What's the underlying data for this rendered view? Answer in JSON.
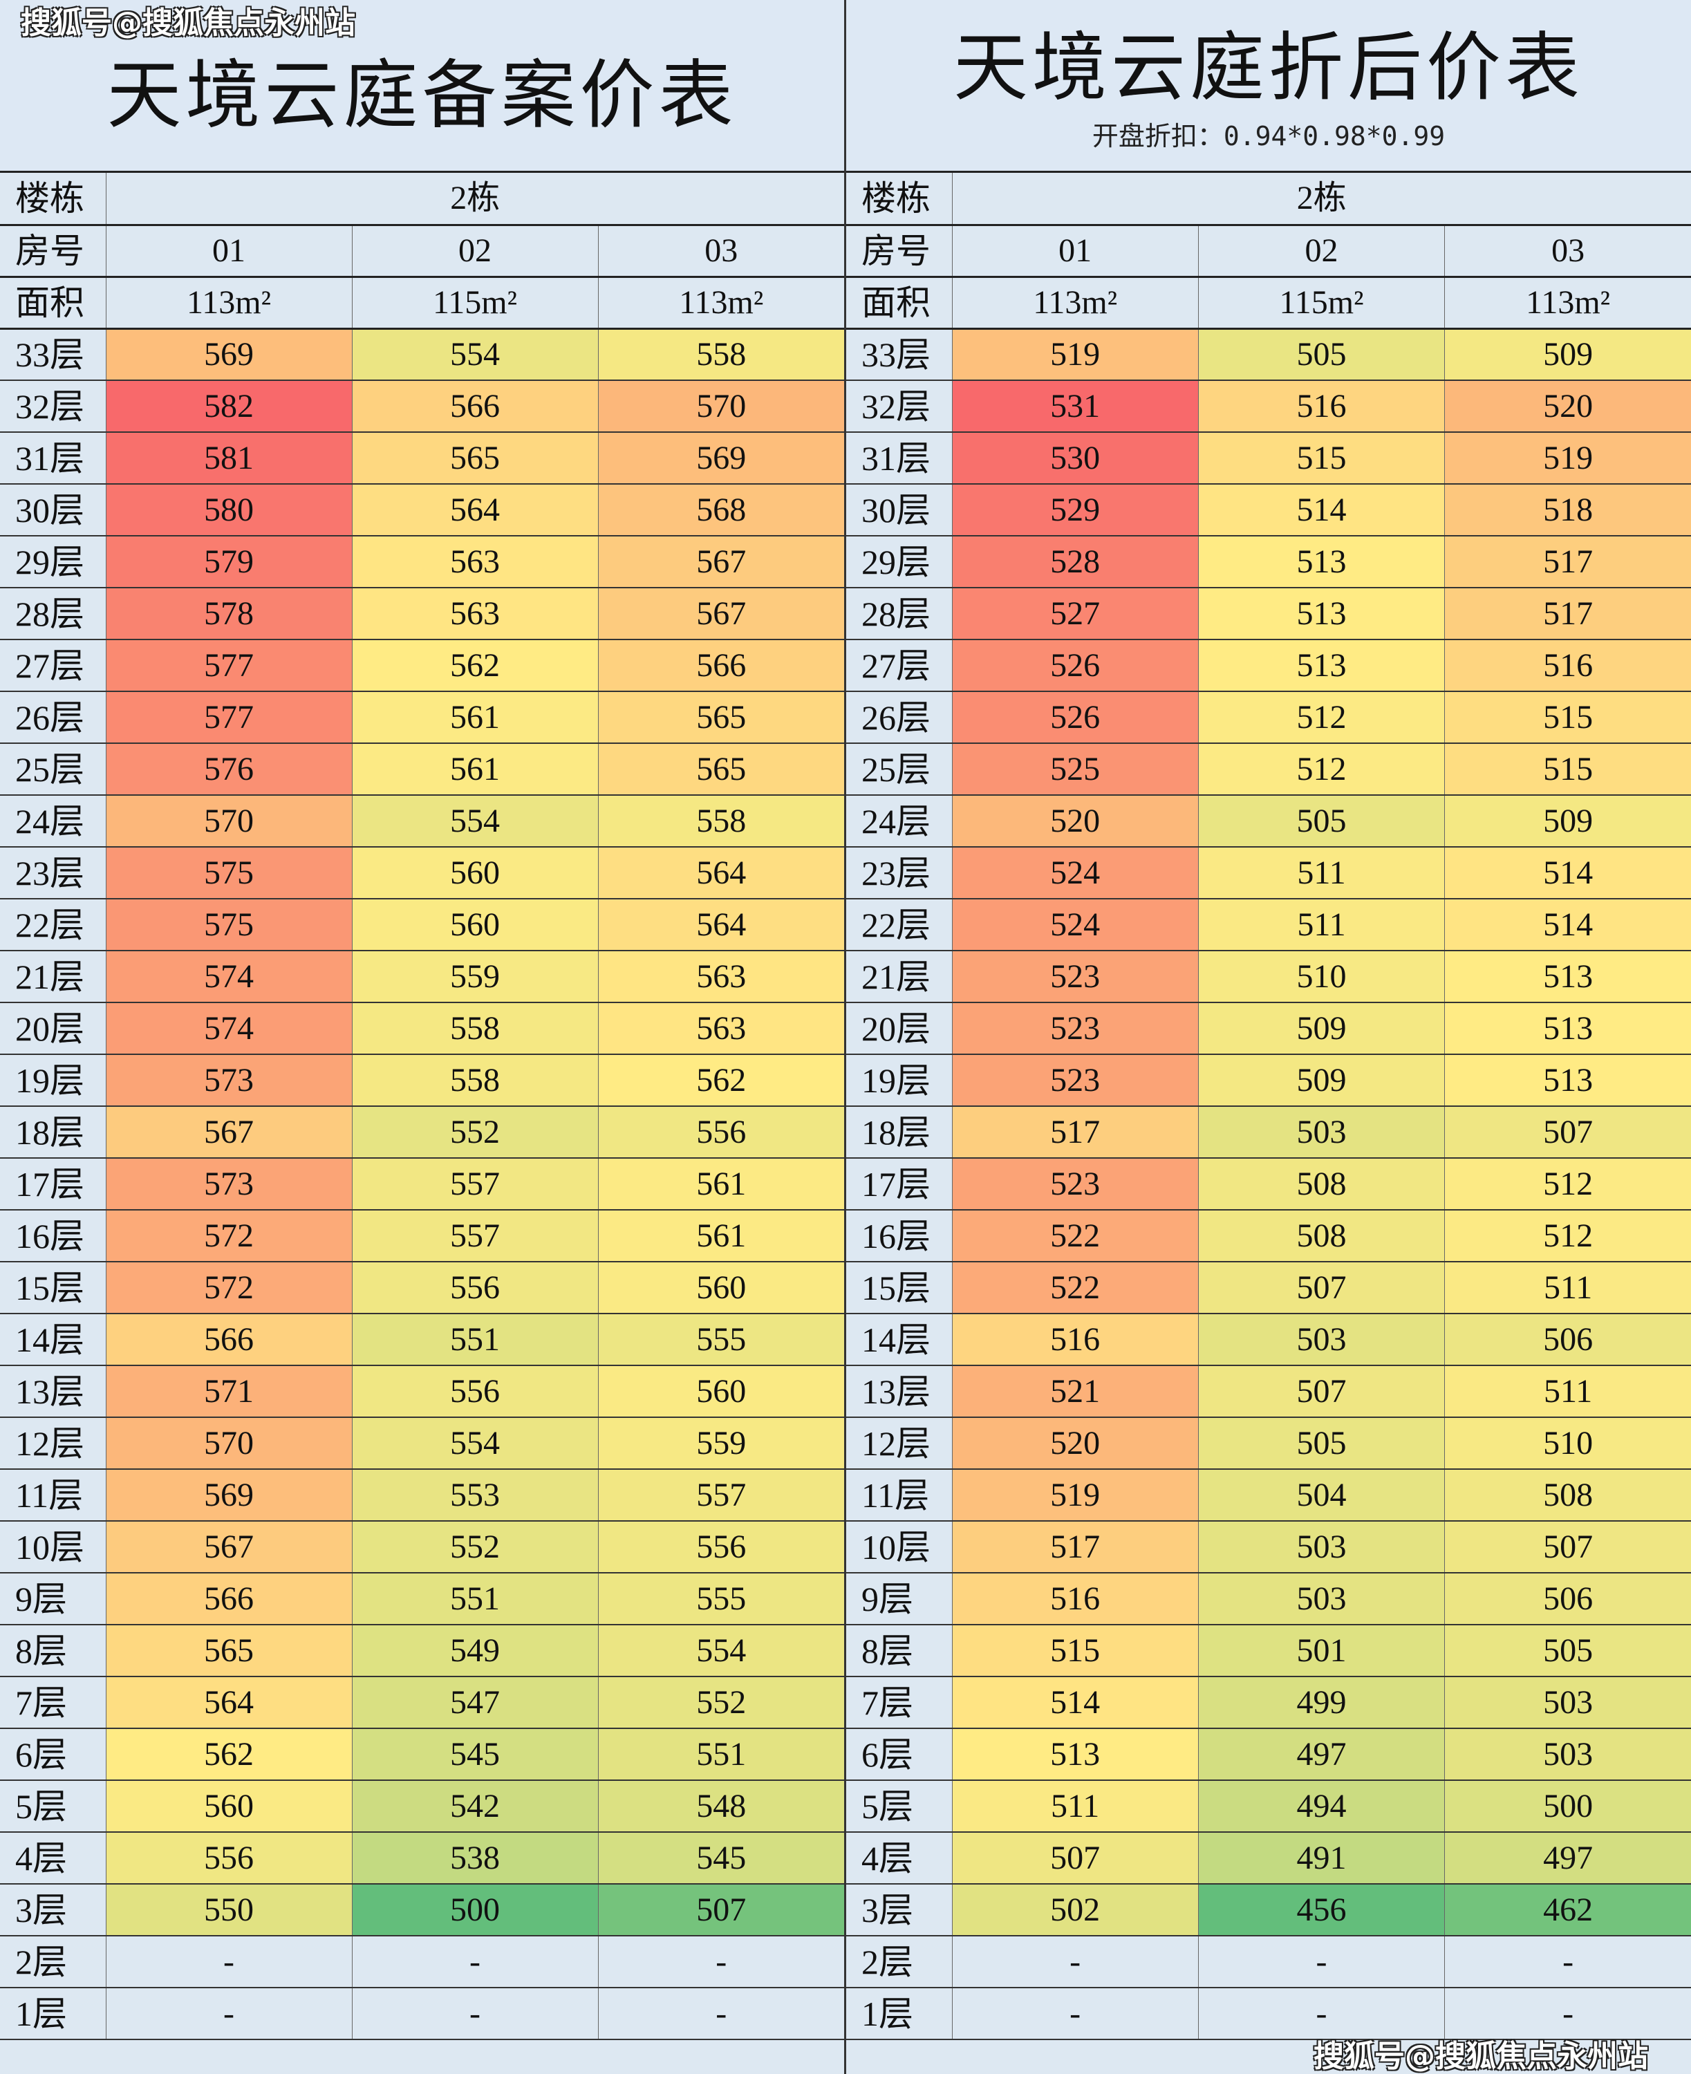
{
  "left": {
    "title": "天境云庭备案价表",
    "building_label": "楼栋",
    "building": "2栋",
    "room_label": "房号",
    "rooms": [
      "01",
      "02",
      "03"
    ],
    "area_label": "面积",
    "areas": [
      "113m²",
      "115m²",
      "113m²"
    ]
  },
  "right": {
    "title": "天境云庭折后价表",
    "subtitle": "开盘折扣：0.94*0.98*0.99",
    "building_label": "楼栋",
    "building": "2栋",
    "room_label": "房号",
    "rooms": [
      "01",
      "02",
      "03"
    ],
    "area_label": "面积",
    "areas": [
      "113m²",
      "115m²",
      "113m²"
    ]
  },
  "watermark": "搜狐号@搜狐焦点永州站",
  "color_scale": {
    "low": "#63be7b",
    "mid": "#ffeb84",
    "high": "#f8696b",
    "empty": "#dde8f2"
  },
  "rows": [
    {
      "floor": "33层",
      "filed": [
        "569",
        "554",
        "558"
      ],
      "discounted": [
        "519",
        "505",
        "509"
      ]
    },
    {
      "floor": "32层",
      "filed": [
        "582",
        "566",
        "570"
      ],
      "discounted": [
        "531",
        "516",
        "520"
      ]
    },
    {
      "floor": "31层",
      "filed": [
        "581",
        "565",
        "569"
      ],
      "discounted": [
        "530",
        "515",
        "519"
      ]
    },
    {
      "floor": "30层",
      "filed": [
        "580",
        "564",
        "568"
      ],
      "discounted": [
        "529",
        "514",
        "518"
      ]
    },
    {
      "floor": "29层",
      "filed": [
        "579",
        "563",
        "567"
      ],
      "discounted": [
        "528",
        "513",
        "517"
      ]
    },
    {
      "floor": "28层",
      "filed": [
        "578",
        "563",
        "567"
      ],
      "discounted": [
        "527",
        "513",
        "517"
      ]
    },
    {
      "floor": "27层",
      "filed": [
        "577",
        "562",
        "566"
      ],
      "discounted": [
        "526",
        "513",
        "516"
      ]
    },
    {
      "floor": "26层",
      "filed": [
        "577",
        "561",
        "565"
      ],
      "discounted": [
        "526",
        "512",
        "515"
      ]
    },
    {
      "floor": "25层",
      "filed": [
        "576",
        "561",
        "565"
      ],
      "discounted": [
        "525",
        "512",
        "515"
      ]
    },
    {
      "floor": "24层",
      "filed": [
        "570",
        "554",
        "558"
      ],
      "discounted": [
        "520",
        "505",
        "509"
      ]
    },
    {
      "floor": "23层",
      "filed": [
        "575",
        "560",
        "564"
      ],
      "discounted": [
        "524",
        "511",
        "514"
      ]
    },
    {
      "floor": "22层",
      "filed": [
        "575",
        "560",
        "564"
      ],
      "discounted": [
        "524",
        "511",
        "514"
      ]
    },
    {
      "floor": "21层",
      "filed": [
        "574",
        "559",
        "563"
      ],
      "discounted": [
        "523",
        "510",
        "513"
      ]
    },
    {
      "floor": "20层",
      "filed": [
        "574",
        "558",
        "563"
      ],
      "discounted": [
        "523",
        "509",
        "513"
      ]
    },
    {
      "floor": "19层",
      "filed": [
        "573",
        "558",
        "562"
      ],
      "discounted": [
        "523",
        "509",
        "513"
      ]
    },
    {
      "floor": "18层",
      "filed": [
        "567",
        "552",
        "556"
      ],
      "discounted": [
        "517",
        "503",
        "507"
      ]
    },
    {
      "floor": "17层",
      "filed": [
        "573",
        "557",
        "561"
      ],
      "discounted": [
        "523",
        "508",
        "512"
      ]
    },
    {
      "floor": "16层",
      "filed": [
        "572",
        "557",
        "561"
      ],
      "discounted": [
        "522",
        "508",
        "512"
      ]
    },
    {
      "floor": "15层",
      "filed": [
        "572",
        "556",
        "560"
      ],
      "discounted": [
        "522",
        "507",
        "511"
      ]
    },
    {
      "floor": "14层",
      "filed": [
        "566",
        "551",
        "555"
      ],
      "discounted": [
        "516",
        "503",
        "506"
      ]
    },
    {
      "floor": "13层",
      "filed": [
        "571",
        "556",
        "560"
      ],
      "discounted": [
        "521",
        "507",
        "511"
      ]
    },
    {
      "floor": "12层",
      "filed": [
        "570",
        "554",
        "559"
      ],
      "discounted": [
        "520",
        "505",
        "510"
      ]
    },
    {
      "floor": "11层",
      "filed": [
        "569",
        "553",
        "557"
      ],
      "discounted": [
        "519",
        "504",
        "508"
      ]
    },
    {
      "floor": "10层",
      "filed": [
        "567",
        "552",
        "556"
      ],
      "discounted": [
        "517",
        "503",
        "507"
      ]
    },
    {
      "floor": "9层",
      "filed": [
        "566",
        "551",
        "555"
      ],
      "discounted": [
        "516",
        "503",
        "506"
      ]
    },
    {
      "floor": "8层",
      "filed": [
        "565",
        "549",
        "554"
      ],
      "discounted": [
        "515",
        "501",
        "505"
      ]
    },
    {
      "floor": "7层",
      "filed": [
        "564",
        "547",
        "552"
      ],
      "discounted": [
        "514",
        "499",
        "503"
      ]
    },
    {
      "floor": "6层",
      "filed": [
        "562",
        "545",
        "551"
      ],
      "discounted": [
        "513",
        "497",
        "503"
      ]
    },
    {
      "floor": "5层",
      "filed": [
        "560",
        "542",
        "548"
      ],
      "discounted": [
        "511",
        "494",
        "500"
      ]
    },
    {
      "floor": "4层",
      "filed": [
        "556",
        "538",
        "545"
      ],
      "discounted": [
        "507",
        "491",
        "497"
      ]
    },
    {
      "floor": "3层",
      "filed": [
        "550",
        "500",
        "507"
      ],
      "discounted": [
        "502",
        "456",
        "462"
      ]
    },
    {
      "floor": "2层",
      "filed": [
        "-",
        "-",
        "-"
      ],
      "discounted": [
        "-",
        "-",
        "-"
      ]
    },
    {
      "floor": "1层",
      "filed": [
        "-",
        "-",
        "-"
      ],
      "discounted": [
        "-",
        "-",
        "-"
      ]
    }
  ]
}
